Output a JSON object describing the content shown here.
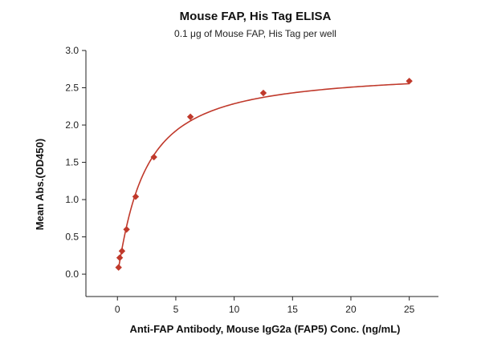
{
  "chart_data": {
    "type": "scatter",
    "title": "Mouse FAP, His Tag ELISA",
    "subtitle": "0.1 μg of Mouse FAP, His Tag per well",
    "xlabel": "Anti-FAP Antibody, Mouse IgG2a (FAP5) Conc. (ng/mL)",
    "ylabel": "Mean Abs.(OD450)",
    "xlim": [
      -2.7,
      27.5
    ],
    "ylim": [
      -0.3,
      3.0
    ],
    "xticks": [
      0,
      5,
      10,
      15,
      20,
      25
    ],
    "xtick_labels": [
      "0",
      "5",
      "10",
      "15",
      "20",
      "25"
    ],
    "yticks": [
      0.0,
      0.5,
      1.0,
      1.5,
      2.0,
      2.5,
      3.0
    ],
    "ytick_labels": [
      "0.0",
      "0.5",
      "1.0",
      "1.5",
      "2.0",
      "2.5",
      "3.0"
    ],
    "grid": false,
    "series": [
      {
        "marker": "diamond",
        "color": "#c0392b",
        "x": [
          0.0977,
          0.195,
          0.391,
          0.781,
          1.5625,
          3.125,
          6.25,
          12.5,
          25
        ],
        "y": [
          0.09,
          0.22,
          0.31,
          0.6,
          1.04,
          1.57,
          2.11,
          2.43,
          2.59
        ]
      }
    ],
    "fit_curve": {
      "type": "4PL",
      "color": "#c0392b",
      "bottom": 0.0,
      "top": 2.74,
      "ec50": 2.3,
      "hill": 1.1
    }
  }
}
